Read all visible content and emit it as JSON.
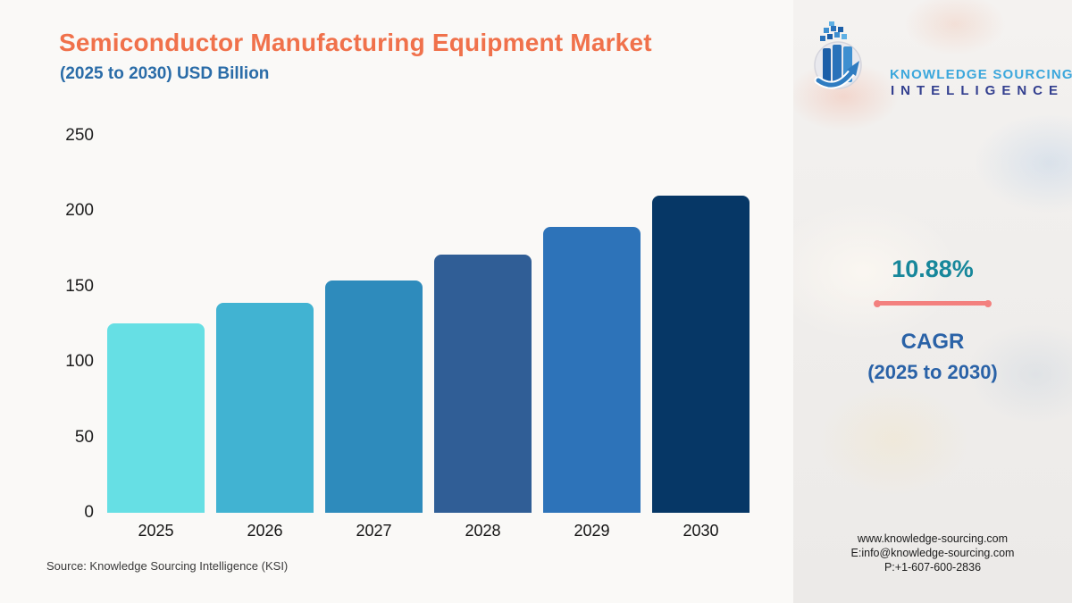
{
  "header": {
    "title": "Semiconductor Manufacturing Equipment Market",
    "subtitle": "(2025 to 2030) USD Billion",
    "title_color": "#F0714B",
    "subtitle_color": "#2A6CA8"
  },
  "brand": {
    "line1": "KNOWLEDGE SOURCING",
    "line2": "INTELLIGENCE",
    "line1_color": "#3BA7DC",
    "line2_color": "#333F8F",
    "logo_icon": "globe-bars-arrow-icon"
  },
  "chart_data": {
    "type": "bar",
    "title": "Semiconductor Manufacturing Equipment Market (2025 to 2030) USD Billion",
    "categories": [
      "2025",
      "2026",
      "2027",
      "2028",
      "2029",
      "2030"
    ],
    "values": [
      125.4,
      139.0,
      154.2,
      171.0,
      189.6,
      210.2
    ],
    "unit": "USD Billion",
    "ylim": [
      0,
      250
    ],
    "yticks": [
      0,
      50,
      100,
      150,
      200,
      250
    ],
    "grid": false,
    "legend": false,
    "bar_colors": [
      "#66DFE4",
      "#41B3D2",
      "#2E8BBC",
      "#305E96",
      "#2D73B9",
      "#063766"
    ]
  },
  "cagr": {
    "value": "10.88%",
    "label": "CAGR",
    "period": "(2025 to 2030)",
    "value_color": "#17879B",
    "label_color": "#2A62A7",
    "accent_color": "#F3807E"
  },
  "contact": {
    "website": "www.knowledge-sourcing.com",
    "email": "E:info@knowledge-sourcing.com",
    "phone": "P:+1-607-600-2836"
  },
  "footer": {
    "source": "Source: Knowledge Sourcing Intelligence (KSI)"
  }
}
